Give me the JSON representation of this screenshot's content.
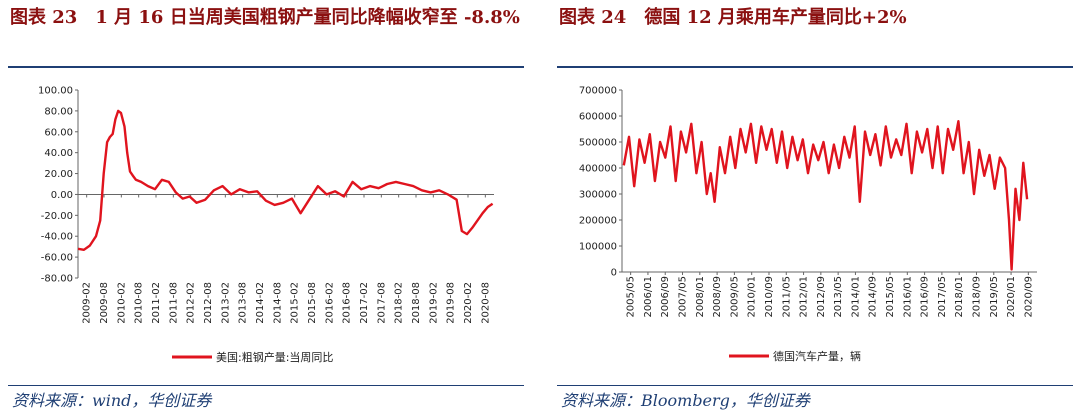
{
  "charts": [
    {
      "title": "图表 23　1 月 16 日当周美国粗钢产量同比降幅收窄至 -8.8%",
      "source": "资料来源：wind，华创证券"
    },
    {
      "title": "图表 24　德国 12 月乘用车产量同比+2%",
      "source": "资料来源：Bloomberg，华创证券"
    }
  ],
  "chart_data": [
    {
      "type": "line",
      "title": "图表 23　1 月 16 日当周美国粗钢产量同比降幅收窄至 -8.8%",
      "xlabel": "",
      "ylabel": "",
      "ylim": [
        -80,
        100
      ],
      "y_ticks": [
        "100.00",
        "80.00",
        "60.00",
        "40.00",
        "20.00",
        "0.00",
        "-20.00",
        "-40.00",
        "-60.00",
        "-80.00"
      ],
      "x_ticks": [
        "2009-02",
        "2009-08",
        "2010-02",
        "2010-08",
        "2011-02",
        "2011-08",
        "2012-02",
        "2012-08",
        "2013-02",
        "2013-08",
        "2014-02",
        "2014-08",
        "2015-02",
        "2015-08",
        "2016-02",
        "2016-08",
        "2017-02",
        "2017-08",
        "2018-02",
        "2018-08",
        "2019-02",
        "2019-08",
        "2020-02",
        "2020-08"
      ],
      "legend_position": "bottom-center",
      "grid": false,
      "color": "#e0141e",
      "series": [
        {
          "name": "美国:粗钢产量:当周同比",
          "x": [
            2009.08,
            2009.25,
            2009.42,
            2009.6,
            2009.72,
            2009.82,
            2009.92,
            2010.0,
            2010.08,
            2010.16,
            2010.24,
            2010.32,
            2010.42,
            2010.5,
            2010.58,
            2010.66,
            2010.75,
            2010.9,
            2011.1,
            2011.3,
            2011.5,
            2011.7,
            2011.9,
            2012.1,
            2012.3,
            2012.5,
            2012.75,
            2013.0,
            2013.25,
            2013.5,
            2013.75,
            2014.0,
            2014.25,
            2014.5,
            2014.75,
            2015.0,
            2015.25,
            2015.5,
            2015.75,
            2016.0,
            2016.25,
            2016.5,
            2016.75,
            2017.0,
            2017.25,
            2017.5,
            2017.75,
            2018.0,
            2018.25,
            2018.5,
            2018.75,
            2019.0,
            2019.25,
            2019.5,
            2019.75,
            2020.0,
            2020.15,
            2020.3,
            2020.45,
            2020.6,
            2020.75,
            2020.9,
            2021.04
          ],
          "values": [
            -52,
            -53,
            -49,
            -40,
            -25,
            20,
            50,
            55,
            58,
            72,
            80,
            78,
            65,
            40,
            22,
            18,
            14,
            12,
            8,
            5,
            14,
            12,
            2,
            -4,
            -2,
            -8,
            -5,
            4,
            8,
            0,
            5,
            2,
            3,
            -6,
            -10,
            -8,
            -4,
            -18,
            -5,
            8,
            0,
            3,
            -2,
            12,
            5,
            8,
            6,
            10,
            12,
            10,
            8,
            4,
            2,
            4,
            0,
            -5,
            -35,
            -38,
            -32,
            -25,
            -18,
            -12,
            -9
          ]
        }
      ]
    },
    {
      "type": "line",
      "title": "图表 24　德国 12 月乘用车产量同比+2%",
      "xlabel": "",
      "ylabel": "",
      "ylim": [
        0,
        700000
      ],
      "y_ticks": [
        "700000",
        "600000",
        "500000",
        "400000",
        "300000",
        "200000",
        "100000",
        "0"
      ],
      "x_ticks": [
        "2005/05",
        "2006/01",
        "2006/09",
        "2007/05",
        "2008/01",
        "2008/09",
        "2009/05",
        "2010/01",
        "2010/09",
        "2011/05",
        "2012/01",
        "2012/09",
        "2013/05",
        "2014/01",
        "2014/09",
        "2015/05",
        "2016/01",
        "2016/09",
        "2017/05",
        "2018/01",
        "2018/09",
        "2019/05",
        "2020/01",
        "2020/09"
      ],
      "legend_position": "bottom-center",
      "grid": false,
      "color": "#e0141e",
      "series": [
        {
          "name": "德国汽车产量，辆",
          "x": [
            2005.4,
            2005.6,
            2005.8,
            2006.0,
            2006.2,
            2006.4,
            2006.6,
            2006.8,
            2007.0,
            2007.2,
            2007.4,
            2007.6,
            2007.8,
            2008.0,
            2008.2,
            2008.4,
            2008.6,
            2008.75,
            2008.9,
            2009.1,
            2009.3,
            2009.5,
            2009.7,
            2009.9,
            2010.1,
            2010.3,
            2010.5,
            2010.7,
            2010.9,
            2011.1,
            2011.3,
            2011.5,
            2011.7,
            2011.9,
            2012.1,
            2012.3,
            2012.5,
            2012.7,
            2012.9,
            2013.1,
            2013.3,
            2013.5,
            2013.7,
            2013.9,
            2014.1,
            2014.3,
            2014.5,
            2014.7,
            2014.9,
            2015.1,
            2015.3,
            2015.5,
            2015.7,
            2015.9,
            2016.1,
            2016.3,
            2016.5,
            2016.7,
            2016.9,
            2017.1,
            2017.3,
            2017.5,
            2017.7,
            2017.9,
            2018.1,
            2018.3,
            2018.5,
            2018.7,
            2018.9,
            2019.1,
            2019.3,
            2019.5,
            2019.7,
            2019.9,
            2020.1,
            2020.25,
            2020.35,
            2020.5,
            2020.65,
            2020.8,
            2020.95
          ],
          "values": [
            410000,
            520000,
            330000,
            510000,
            420000,
            530000,
            350000,
            500000,
            440000,
            560000,
            350000,
            540000,
            460000,
            570000,
            380000,
            500000,
            300000,
            380000,
            270000,
            480000,
            380000,
            520000,
            400000,
            550000,
            460000,
            570000,
            420000,
            560000,
            470000,
            550000,
            420000,
            540000,
            400000,
            520000,
            430000,
            510000,
            380000,
            490000,
            430000,
            500000,
            380000,
            490000,
            400000,
            520000,
            440000,
            560000,
            270000,
            540000,
            450000,
            530000,
            410000,
            560000,
            440000,
            510000,
            450000,
            570000,
            380000,
            540000,
            460000,
            550000,
            400000,
            560000,
            380000,
            550000,
            470000,
            580000,
            380000,
            500000,
            300000,
            470000,
            370000,
            450000,
            320000,
            440000,
            400000,
            200000,
            10000,
            320000,
            200000,
            420000,
            280000
          ]
        }
      ]
    }
  ]
}
